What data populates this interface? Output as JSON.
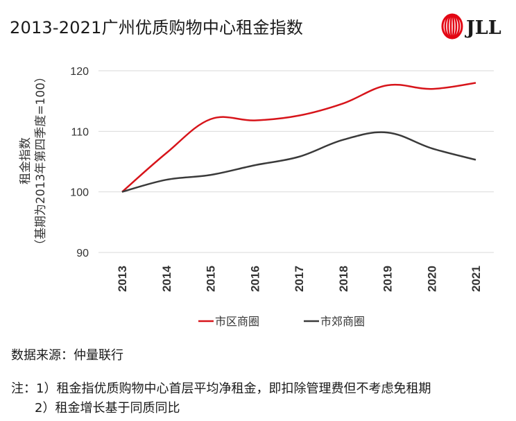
{
  "title": "2013-2021广州优质购物中心租金指数",
  "logo": {
    "text": "JLL",
    "color": "#e30613"
  },
  "chart_data": {
    "type": "line",
    "title": "2013-2021广州优质购物中心租金指数",
    "xlabel": "",
    "ylabel_line1": "租金指数",
    "ylabel_line2": "（基期为2013年第四季度=100）",
    "categories": [
      "2013",
      "2014",
      "2015",
      "2016",
      "2017",
      "2018",
      "2019",
      "2020",
      "2021"
    ],
    "ylim": [
      90,
      120
    ],
    "yticks": [
      90,
      100,
      110,
      120
    ],
    "grid": true,
    "legend_position": "bottom",
    "series": [
      {
        "name": "市区商圈",
        "color": "#d7141a",
        "values": [
          100,
          106.4,
          112.0,
          111.8,
          112.6,
          114.6,
          117.6,
          117.0,
          118.0
        ]
      },
      {
        "name": "市郊商圈",
        "color": "#3a3a3a",
        "values": [
          100,
          102.0,
          102.8,
          104.4,
          105.8,
          108.6,
          109.8,
          107.2,
          105.3
        ]
      }
    ]
  },
  "source": "数据来源：仲量联行",
  "notes": {
    "line1": "注：1）租金指优质购物中心首层平均净租金，即扣除管理费但不考虑免租期",
    "line2": "2）租金增长基于同质同比"
  }
}
